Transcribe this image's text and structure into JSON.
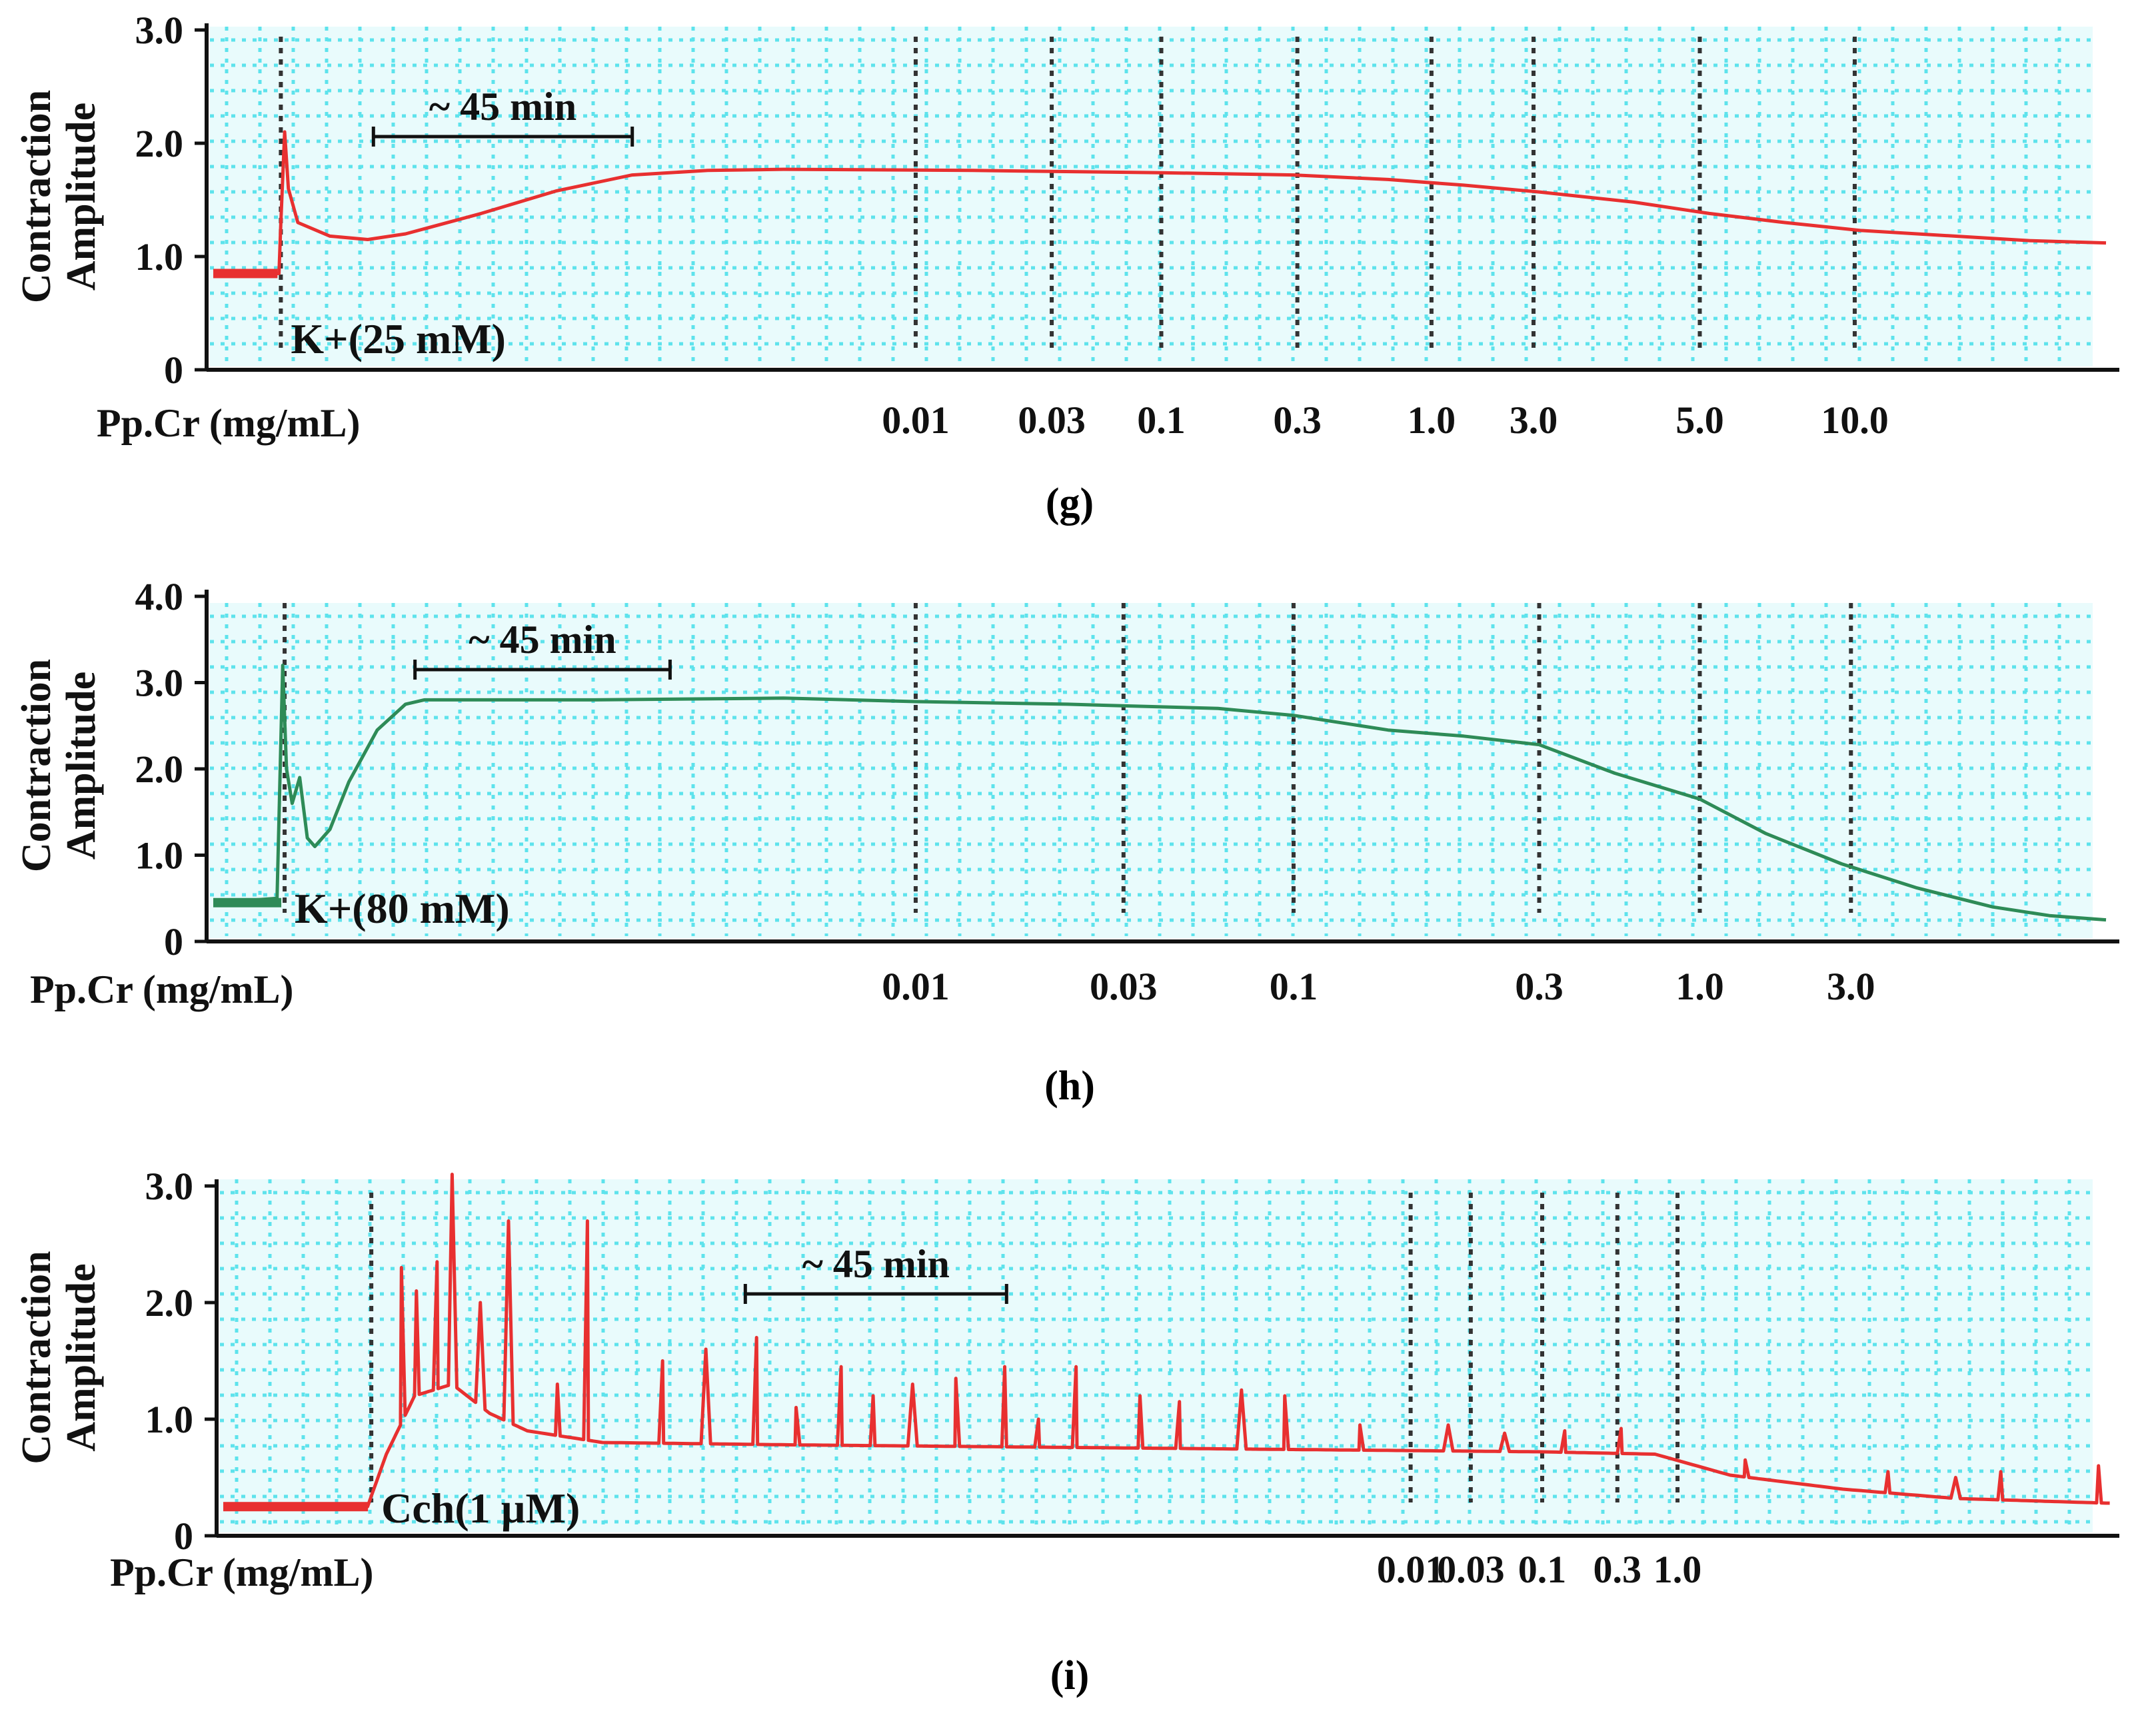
{
  "figure": {
    "colors": {
      "grid": "#5ee3ec",
      "grid_bg": "#e9fbfc",
      "trace_red": "#e83030",
      "trace_green": "#2e8b57",
      "axis": "#111111",
      "marker": "#333333",
      "label": "#111111"
    }
  },
  "chart_data": [
    {
      "id": "g",
      "type": "line",
      "caption": "(g)",
      "ylabel_line1": "Contraction",
      "ylabel_line2": "Amplitude",
      "yticks": [
        "0",
        "1.0",
        "2.0",
        "3.0"
      ],
      "ylim": [
        0,
        3.0
      ],
      "xlim": [
        0,
        100
      ],
      "dose_axis_label": "Pp.Cr (mg/mL)",
      "agonist_label": "K+(25 mM)",
      "timebar_label": "~ 45 min",
      "timebar_range": [
        8.3,
        22.0
      ],
      "agonist_time": 3.4,
      "trace_color": "red",
      "doses": [
        {
          "label": "0.01",
          "x": 37.0
        },
        {
          "label": "0.03",
          "x": 44.2
        },
        {
          "label": "0.1",
          "x": 50.0
        },
        {
          "label": "0.3",
          "x": 57.2
        },
        {
          "label": "1.0",
          "x": 64.3
        },
        {
          "label": "3.0",
          "x": 69.7
        },
        {
          "label": "5.0",
          "x": 78.5
        },
        {
          "label": "10.0",
          "x": 86.7
        }
      ],
      "trace": [
        [
          0,
          0.85
        ],
        [
          3.3,
          0.85
        ],
        [
          3.4,
          1.3
        ],
        [
          3.6,
          2.1
        ],
        [
          3.8,
          1.6
        ],
        [
          4.3,
          1.3
        ],
        [
          6,
          1.18
        ],
        [
          8,
          1.15
        ],
        [
          10,
          1.2
        ],
        [
          14,
          1.38
        ],
        [
          18,
          1.58
        ],
        [
          22,
          1.72
        ],
        [
          26,
          1.76
        ],
        [
          30,
          1.77
        ],
        [
          40,
          1.76
        ],
        [
          50,
          1.74
        ],
        [
          57,
          1.72
        ],
        [
          62,
          1.68
        ],
        [
          66,
          1.63
        ],
        [
          70,
          1.57
        ],
        [
          75,
          1.48
        ],
        [
          79,
          1.38
        ],
        [
          83,
          1.3
        ],
        [
          87,
          1.23
        ],
        [
          92,
          1.18
        ],
        [
          96,
          1.14
        ],
        [
          100,
          1.12
        ]
      ]
    },
    {
      "id": "h",
      "type": "line",
      "caption": "(h)",
      "ylabel_line1": "Contraction",
      "ylabel_line2": "Amplitude",
      "yticks": [
        "0",
        "1.0",
        "2.0",
        "3.0",
        "4.0"
      ],
      "ylim": [
        0,
        4.0
      ],
      "xlim": [
        0,
        100
      ],
      "dose_axis_label": "Pp.Cr (mg/mL)",
      "agonist_label": "K+(80 mM)",
      "timebar_label": "~ 45 min",
      "timebar_range": [
        10.5,
        24.0
      ],
      "agonist_time": 3.6,
      "trace_color": "green",
      "doses": [
        {
          "label": "0.01",
          "x": 37.0
        },
        {
          "label": "0.03",
          "x": 48.0
        },
        {
          "label": "0.1",
          "x": 57.0
        },
        {
          "label": "0.3",
          "x": 70.0
        },
        {
          "label": "1.0",
          "x": 78.5
        },
        {
          "label": "3.0",
          "x": 86.5
        }
      ],
      "trace": [
        [
          0,
          0.45
        ],
        [
          3.2,
          0.5
        ],
        [
          3.5,
          3.2
        ],
        [
          3.7,
          2.0
        ],
        [
          4.0,
          1.6
        ],
        [
          4.4,
          1.9
        ],
        [
          4.8,
          1.2
        ],
        [
          5.2,
          1.1
        ],
        [
          6,
          1.3
        ],
        [
          7,
          1.85
        ],
        [
          8.5,
          2.45
        ],
        [
          10,
          2.75
        ],
        [
          11,
          2.8
        ],
        [
          20,
          2.8
        ],
        [
          30,
          2.82
        ],
        [
          37,
          2.78
        ],
        [
          45,
          2.75
        ],
        [
          53,
          2.7
        ],
        [
          57,
          2.62
        ],
        [
          62,
          2.45
        ],
        [
          66,
          2.38
        ],
        [
          70,
          2.28
        ],
        [
          74,
          1.95
        ],
        [
          78.5,
          1.65
        ],
        [
          82,
          1.25
        ],
        [
          86,
          0.9
        ],
        [
          90,
          0.62
        ],
        [
          94,
          0.4
        ],
        [
          97,
          0.3
        ],
        [
          100,
          0.25
        ]
      ]
    },
    {
      "id": "i",
      "type": "line",
      "caption": "(i)",
      "ylabel_line1": "Contraction",
      "ylabel_line2": "Amplitude",
      "yticks": [
        "0",
        "1.0",
        "2.0",
        "3.0"
      ],
      "ylim": [
        0,
        3.0
      ],
      "xlim": [
        0,
        100
      ],
      "dose_axis_label": "Pp.Cr (mg/mL)",
      "agonist_label": "Cch(1 µM)",
      "timebar_label": "~ 45 min",
      "timebar_range": [
        27.6,
        41.5
      ],
      "agonist_time": 7.7,
      "trace_color": "red",
      "doses": [
        {
          "label": "0.01",
          "x": 63.0
        },
        {
          "label": "0.03",
          "x": 66.2
        },
        {
          "label": "0.1",
          "x": 70.0
        },
        {
          "label": "0.3",
          "x": 74.0
        },
        {
          "label": "1.0",
          "x": 77.2
        }
      ],
      "baseline": [
        [
          0,
          0.25
        ],
        [
          7.5,
          0.25
        ],
        [
          8.5,
          0.7
        ],
        [
          10,
          1.2
        ],
        [
          12,
          1.3
        ],
        [
          14,
          1.05
        ],
        [
          16,
          0.9
        ],
        [
          20,
          0.8
        ],
        [
          30,
          0.78
        ],
        [
          50,
          0.75
        ],
        [
          70,
          0.72
        ],
        [
          76,
          0.7
        ],
        [
          80,
          0.52
        ],
        [
          86,
          0.4
        ],
        [
          92,
          0.32
        ],
        [
          100,
          0.28
        ]
      ],
      "peaks": [
        [
          9.3,
          2.3
        ],
        [
          10.1,
          2.1
        ],
        [
          11.2,
          2.35
        ],
        [
          12.0,
          3.1
        ],
        [
          13.5,
          2.0
        ],
        [
          15.0,
          2.7
        ],
        [
          17.6,
          1.3
        ],
        [
          19.2,
          2.7
        ],
        [
          23.2,
          1.5
        ],
        [
          25.5,
          1.6
        ],
        [
          28.2,
          1.7
        ],
        [
          30.3,
          1.1
        ],
        [
          32.7,
          1.45
        ],
        [
          34.4,
          1.2
        ],
        [
          36.5,
          1.3
        ],
        [
          38.8,
          1.35
        ],
        [
          41.4,
          1.45
        ],
        [
          43.2,
          1.0
        ],
        [
          45.2,
          1.45
        ],
        [
          48.6,
          1.2
        ],
        [
          50.7,
          1.15
        ],
        [
          54.0,
          1.25
        ],
        [
          56.3,
          1.2
        ],
        [
          60.3,
          0.95
        ],
        [
          65.0,
          0.95
        ],
        [
          68.0,
          0.88
        ],
        [
          71.2,
          0.9
        ],
        [
          74.2,
          0.92
        ],
        [
          80.8,
          0.65
        ],
        [
          88.4,
          0.55
        ],
        [
          92.0,
          0.5
        ],
        [
          94.4,
          0.55
        ],
        [
          99.6,
          0.6
        ]
      ]
    }
  ]
}
